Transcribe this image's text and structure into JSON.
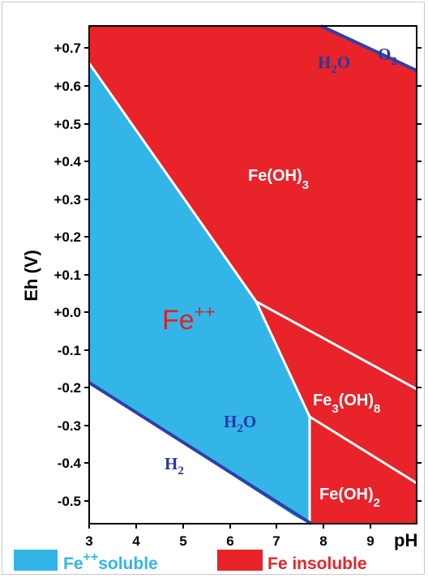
{
  "axes": {
    "y_label": "Eh (V)",
    "x_label": "pH",
    "x_ticks": [
      "3",
      "4",
      "5",
      "6",
      "7",
      "8",
      "9"
    ],
    "y_ticks": [
      "+0.7",
      "+0.6",
      "+0.5",
      "+0.4",
      "+0.3",
      "+0.2",
      "+0.1",
      "+0.0",
      "-0.1",
      "-0.2",
      "-0.3",
      "-0.4",
      "-0.5"
    ]
  },
  "regions": {
    "fe_oh3": {
      "main": "Fe(OH)",
      "sub": "3"
    },
    "fe3_oh8": {
      "main1": "Fe",
      "sub1": "3",
      "main2": "(OH)",
      "sub2": "8"
    },
    "fe_oh2": {
      "main": "Fe(OH)",
      "sub": "2"
    },
    "fe_pp": {
      "main": "Fe",
      "sup": "++"
    }
  },
  "water_labels": {
    "o2": {
      "main": "O",
      "sub": "2"
    },
    "h2o_top": {
      "main": "H",
      "sub": "2",
      "tail": "O"
    },
    "h2o_bottom": {
      "main": "H",
      "sub": "2",
      "tail": "O"
    },
    "h2": {
      "main": "H",
      "sub": "2"
    }
  },
  "legend": {
    "soluble": {
      "prefix": "Fe",
      "sup": "++",
      "text": "soluble"
    },
    "insoluble": {
      "text": "Fe insoluble"
    }
  },
  "colors": {
    "soluble": "#33b5e8",
    "insoluble": "#e8232a",
    "boundary_water": "#2f3fa8",
    "boundary_phase": "#ffffff"
  }
}
